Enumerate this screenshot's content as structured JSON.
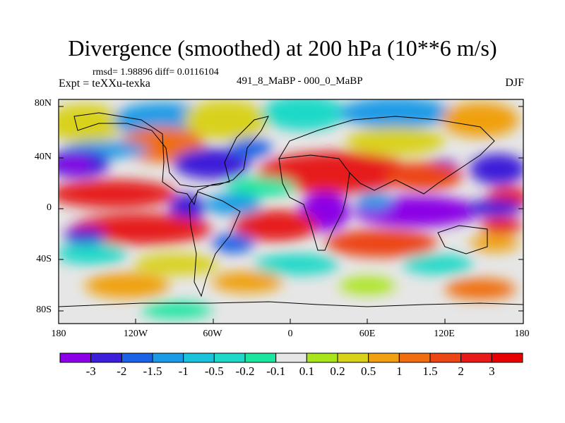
{
  "title": "Divergence (smoothed) at 200 hPa (10**6 m/s)",
  "stats": "rmsd= 1.98896 diff= 0.0116104",
  "experiment": "Expt = teXXu-texka",
  "comparison": "491_8_MaBP - 000_0_MaBP",
  "season": "DJF",
  "lat_labels": [
    "80N",
    "40N",
    "0",
    "40S",
    "80S"
  ],
  "lon_labels": [
    "180",
    "120W",
    "60W",
    "0",
    "60E",
    "120E",
    "180"
  ],
  "colorbar": {
    "labels": [
      "-3",
      "-2",
      "-1.5",
      "-1",
      "-0.5",
      "-0.2",
      "-0.1",
      "0.1",
      "0.2",
      "0.5",
      "1",
      "1.5",
      "2",
      "3"
    ],
    "colors": [
      "#8b00e6",
      "#3d1fd9",
      "#1a63e6",
      "#1a9be6",
      "#19c3dc",
      "#1fd9c8",
      "#1ae6a0",
      "#e6e6e6",
      "#a8e619",
      "#d9d21a",
      "#f0a010",
      "#f06e10",
      "#ec4516",
      "#e61a1a",
      "#e60000"
    ]
  }
}
